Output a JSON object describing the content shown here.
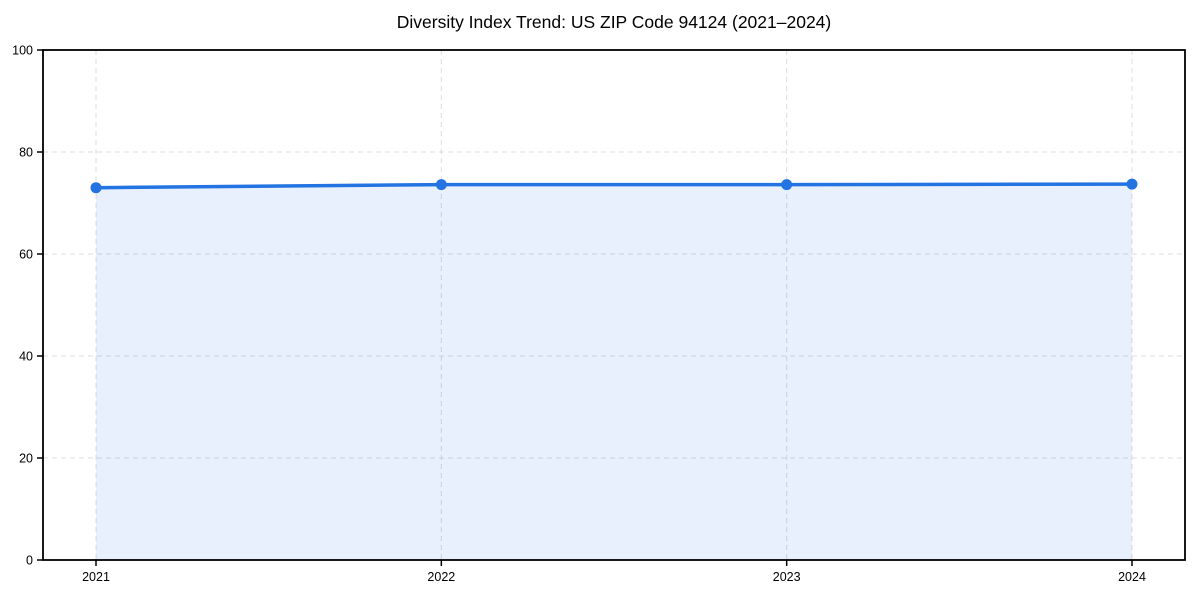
{
  "chart_data": {
    "type": "area",
    "title": "Diversity Index Trend: US ZIP Code 94124 (2021–2024)",
    "categories": [
      "2021",
      "2022",
      "2023",
      "2024"
    ],
    "series": [
      {
        "name": "Diversity Index",
        "values": [
          73.0,
          73.6,
          73.6,
          73.7
        ]
      }
    ],
    "xlabel": "",
    "ylabel": "",
    "ylim": [
      0,
      100
    ],
    "yticks": [
      0,
      20,
      40,
      60,
      80,
      100
    ],
    "grid": true,
    "grid_style": "dashed",
    "legend": false,
    "marker": "circle",
    "colors": {
      "line": "#2373e2",
      "fill": "#2373e2",
      "fill_opacity": 0.11,
      "grid": "#dcdcdc",
      "axis": "#000000",
      "text": "#000000",
      "background": "#ffffff"
    }
  }
}
